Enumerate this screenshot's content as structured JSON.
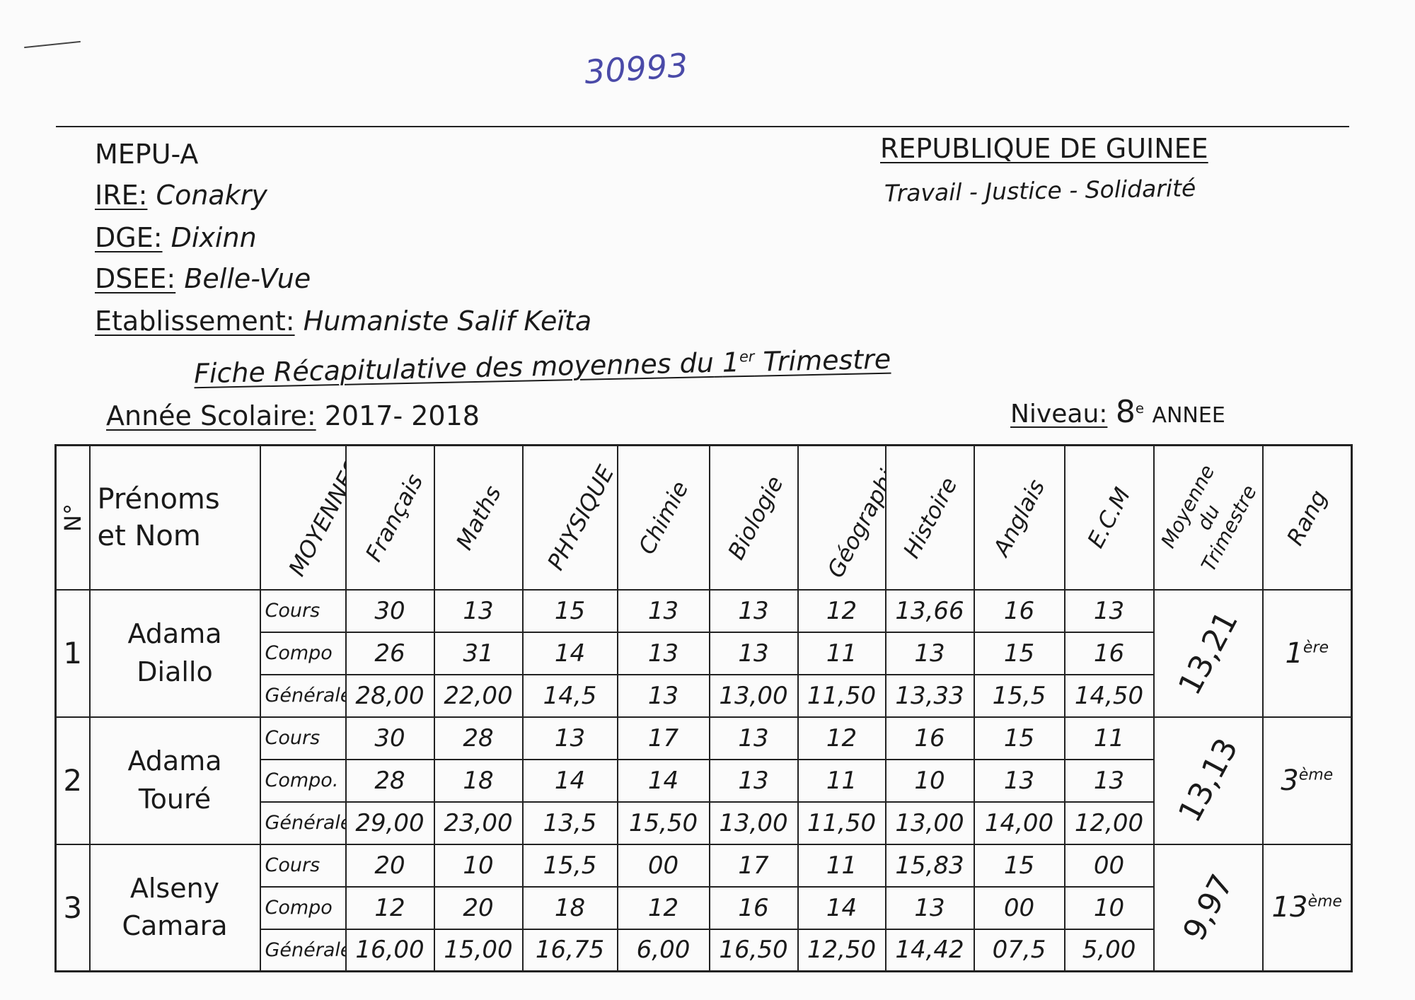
{
  "stamp": "30993",
  "header": {
    "ministry": "MEPU-A",
    "admin": [
      {
        "label": "IRE:",
        "value": "Conakry"
      },
      {
        "label": "DGE:",
        "value": "Dixinn"
      },
      {
        "label": "DSEE:",
        "value": "Belle-Vue"
      },
      {
        "label": "Etablissement:",
        "value": "Humaniste Salif Keïta"
      }
    ],
    "country": "REPUBLIQUE DE GUINEE",
    "motto": "Travail - Justice - Solidarité"
  },
  "title": {
    "text": "Fiche Récapitulative des moyennes du",
    "ordinal": "1",
    "ordinal_sup": "er",
    "term": "Trimestre"
  },
  "year": {
    "label": "Année Scolaire:",
    "value": "2017- 2018"
  },
  "level": {
    "label": "Niveau:",
    "grade": "8",
    "grade_sup": "e",
    "value": "ANNEE"
  },
  "table": {
    "columns": [
      "N°",
      "Prénoms et Nom",
      "MOYENNES",
      "Français",
      "Maths",
      "PHYSIQUE",
      "Chimie",
      "Biologie",
      "Géographie",
      "Histoire",
      "Anglais",
      "E.C.M",
      "Moyenne du Trimestre",
      "Rang"
    ],
    "students": [
      {
        "number": "1",
        "first": "Adama",
        "last": "Diallo",
        "rows": [
          {
            "label": "Cours",
            "values": [
              "30",
              "13",
              "15",
              "13",
              "13",
              "12",
              "13,66",
              "16",
              "13"
            ]
          },
          {
            "label": "Compo",
            "values": [
              "26",
              "31",
              "14",
              "13",
              "13",
              "11",
              "13",
              "15",
              "16"
            ]
          },
          {
            "label": "Générale",
            "values": [
              "28,00",
              "22,00",
              "14,5",
              "13",
              "13,00",
              "11,50",
              "13,33",
              "15,5",
              "14,50"
            ]
          }
        ],
        "average": "13,21",
        "rank": "1",
        "rank_sup": "ère"
      },
      {
        "number": "2",
        "first": "Adama",
        "last": "Touré",
        "rows": [
          {
            "label": "Cours",
            "values": [
              "30",
              "28",
              "13",
              "17",
              "13",
              "12",
              "16",
              "15",
              "11"
            ]
          },
          {
            "label": "Compo.",
            "values": [
              "28",
              "18",
              "14",
              "14",
              "13",
              "11",
              "10",
              "13",
              "13"
            ]
          },
          {
            "label": "Générale",
            "values": [
              "29,00",
              "23,00",
              "13,5",
              "15,50",
              "13,00",
              "11,50",
              "13,00",
              "14,00",
              "12,00"
            ]
          }
        ],
        "average": "13,13",
        "rank": "3",
        "rank_sup": "ème"
      },
      {
        "number": "3",
        "first": "Alseny",
        "last": "Camara",
        "rows": [
          {
            "label": "Cours",
            "values": [
              "20",
              "10",
              "15,5",
              "00",
              "17",
              "11",
              "15,83",
              "15",
              "00"
            ]
          },
          {
            "label": "Compo",
            "values": [
              "12",
              "20",
              "18",
              "12",
              "16",
              "14",
              "13",
              "00",
              "10"
            ]
          },
          {
            "label": "Générale",
            "values": [
              "16,00",
              "15,00",
              "16,75",
              "6,00",
              "16,50",
              "12,50",
              "14,42",
              "07,5",
              "5,00"
            ]
          }
        ],
        "average": "9,97",
        "rank": "13",
        "rank_sup": "ème"
      }
    ]
  }
}
